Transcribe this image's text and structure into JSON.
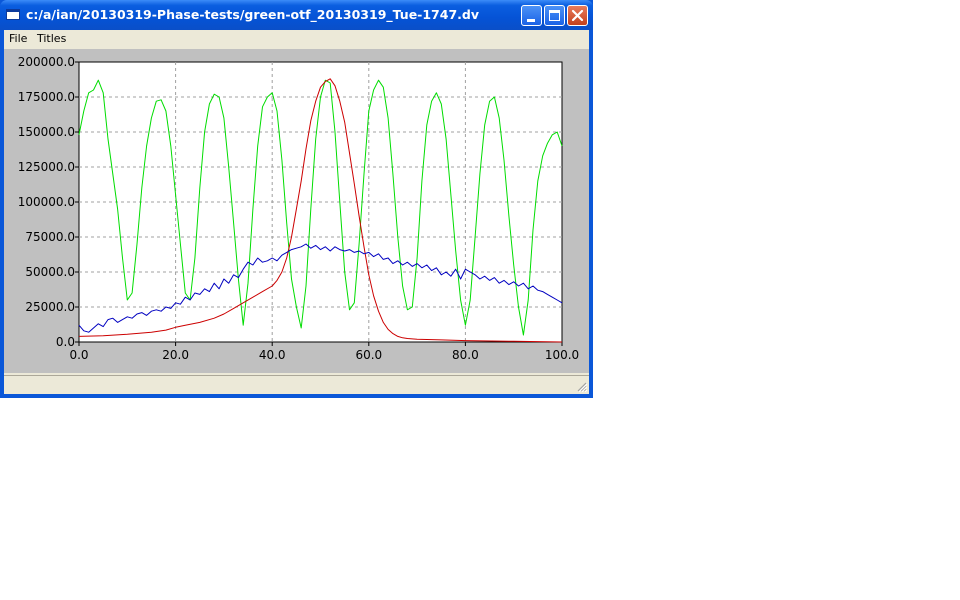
{
  "window": {
    "title": "c:/a/ian/20130319-Phase-tests/green-otf_20130319_Tue-1747.dv"
  },
  "menu": {
    "items": [
      "File",
      "Titles"
    ]
  },
  "colors": {
    "green": "#00dd00",
    "red": "#cc0000",
    "blue": "#0000c0",
    "plot_bg": "#ffffff",
    "frame_bg": "#c0c0c0",
    "grid": "#a0a0a0"
  },
  "chart_data": {
    "type": "line",
    "title": "",
    "xlabel": "",
    "ylabel": "",
    "xlim": [
      0,
      100
    ],
    "ylim": [
      0,
      200000
    ],
    "grid": true,
    "x_ticks": [
      "0.0",
      "20.0",
      "40.0",
      "60.0",
      "80.0",
      "100.0"
    ],
    "y_ticks": [
      "0.0",
      "25000.0",
      "50000.0",
      "75000.0",
      "100000.0",
      "125000.0",
      "150000.0",
      "175000.0",
      "200000.0"
    ],
    "series": [
      {
        "color": "green",
        "x": [
          0,
          1,
          2,
          3,
          4,
          5,
          6,
          7,
          8,
          9,
          10,
          11,
          12,
          13,
          14,
          15,
          16,
          17,
          18,
          19,
          20,
          21,
          22,
          23,
          24,
          25,
          26,
          27,
          28,
          29,
          30,
          31,
          32,
          33,
          34,
          35,
          36,
          37,
          38,
          39,
          40,
          41,
          42,
          43,
          44,
          45,
          46,
          47,
          48,
          49,
          50,
          51,
          52,
          53,
          54,
          55,
          56,
          57,
          58,
          59,
          60,
          61,
          62,
          63,
          64,
          65,
          66,
          67,
          68,
          69,
          70,
          71,
          72,
          73,
          74,
          75,
          76,
          77,
          78,
          79,
          80,
          81,
          82,
          83,
          84,
          85,
          86,
          87,
          88,
          89,
          90,
          91,
          92,
          93,
          94,
          95,
          96,
          97,
          98,
          99,
          100
        ],
        "y": [
          148000,
          165000,
          178000,
          180000,
          187000,
          178000,
          145000,
          120000,
          95000,
          60000,
          30000,
          35000,
          70000,
          110000,
          140000,
          160000,
          172000,
          173000,
          165000,
          140000,
          105000,
          70000,
          35000,
          30000,
          60000,
          110000,
          150000,
          170000,
          177000,
          175000,
          160000,
          125000,
          85000,
          45000,
          12000,
          42000,
          95000,
          140000,
          168000,
          175000,
          178000,
          165000,
          130000,
          85000,
          45000,
          25000,
          10000,
          40000,
          95000,
          145000,
          175000,
          187000,
          185000,
          150000,
          100000,
          50000,
          23000,
          28000,
          70000,
          120000,
          165000,
          180000,
          187000,
          182000,
          160000,
          120000,
          75000,
          40000,
          23000,
          25000,
          60000,
          115000,
          155000,
          172000,
          178000,
          170000,
          145000,
          105000,
          65000,
          30000,
          12000,
          30000,
          75000,
          120000,
          155000,
          172000,
          175000,
          160000,
          130000,
          90000,
          55000,
          25000,
          5000,
          30000,
          80000,
          115000,
          133000,
          142000,
          148000,
          150000,
          140000
        ]
      },
      {
        "color": "red",
        "x": [
          0,
          5,
          10,
          15,
          18,
          20,
          22,
          25,
          28,
          30,
          32,
          34,
          36,
          38,
          40,
          41,
          42,
          43,
          44,
          45,
          46,
          47,
          48,
          49,
          50,
          51,
          52,
          53,
          54,
          55,
          56,
          57,
          58,
          59,
          60,
          61,
          62,
          63,
          64,
          65,
          66,
          67,
          68,
          70,
          75,
          80,
          90,
          100
        ],
        "y": [
          4000,
          4500,
          5500,
          7000,
          8500,
          10500,
          12000,
          14000,
          17000,
          20000,
          24000,
          28000,
          32000,
          36000,
          40000,
          44000,
          50000,
          60000,
          75000,
          95000,
          115000,
          138000,
          158000,
          172000,
          182000,
          186000,
          188000,
          183000,
          172000,
          157000,
          135000,
          113000,
          90000,
          68000,
          48000,
          33000,
          22000,
          14000,
          9000,
          6000,
          4000,
          3000,
          2500,
          2000,
          1500,
          1000,
          500,
          0
        ]
      },
      {
        "color": "blue",
        "x": [
          0,
          1,
          2,
          3,
          4,
          5,
          6,
          7,
          8,
          9,
          10,
          11,
          12,
          13,
          14,
          15,
          16,
          17,
          18,
          19,
          20,
          21,
          22,
          23,
          24,
          25,
          26,
          27,
          28,
          29,
          30,
          31,
          32,
          33,
          34,
          35,
          36,
          37,
          38,
          39,
          40,
          41,
          42,
          43,
          44,
          45,
          46,
          47,
          48,
          49,
          50,
          51,
          52,
          53,
          54,
          55,
          56,
          57,
          58,
          59,
          60,
          61,
          62,
          63,
          64,
          65,
          66,
          67,
          68,
          69,
          70,
          71,
          72,
          73,
          74,
          75,
          76,
          77,
          78,
          79,
          80,
          81,
          82,
          83,
          84,
          85,
          86,
          87,
          88,
          89,
          90,
          91,
          92,
          93,
          94,
          95,
          96,
          97,
          98,
          99,
          100
        ],
        "y": [
          12000,
          8000,
          7000,
          10000,
          13000,
          11000,
          16000,
          17000,
          14000,
          16000,
          18000,
          17000,
          20000,
          21000,
          19000,
          22000,
          23000,
          22000,
          25000,
          24000,
          28000,
          27000,
          32000,
          30000,
          35000,
          34000,
          38000,
          36000,
          42000,
          38000,
          45000,
          42000,
          48000,
          46000,
          52000,
          57000,
          55000,
          60000,
          57000,
          58000,
          60000,
          58000,
          62000,
          64000,
          66000,
          67000,
          68000,
          70000,
          67000,
          69000,
          66000,
          68000,
          65000,
          68000,
          66000,
          65000,
          66000,
          64000,
          65000,
          63000,
          64000,
          61000,
          63000,
          59000,
          60000,
          56000,
          58000,
          55000,
          57000,
          54000,
          56000,
          53000,
          55000,
          51000,
          53000,
          48000,
          50000,
          47000,
          52000,
          45000,
          52000,
          50000,
          48000,
          45000,
          47000,
          44000,
          46000,
          42000,
          44000,
          41000,
          43000,
          40000,
          42000,
          38000,
          40000,
          37000,
          36000,
          34000,
          32000,
          30000,
          28000
        ]
      }
    ]
  }
}
